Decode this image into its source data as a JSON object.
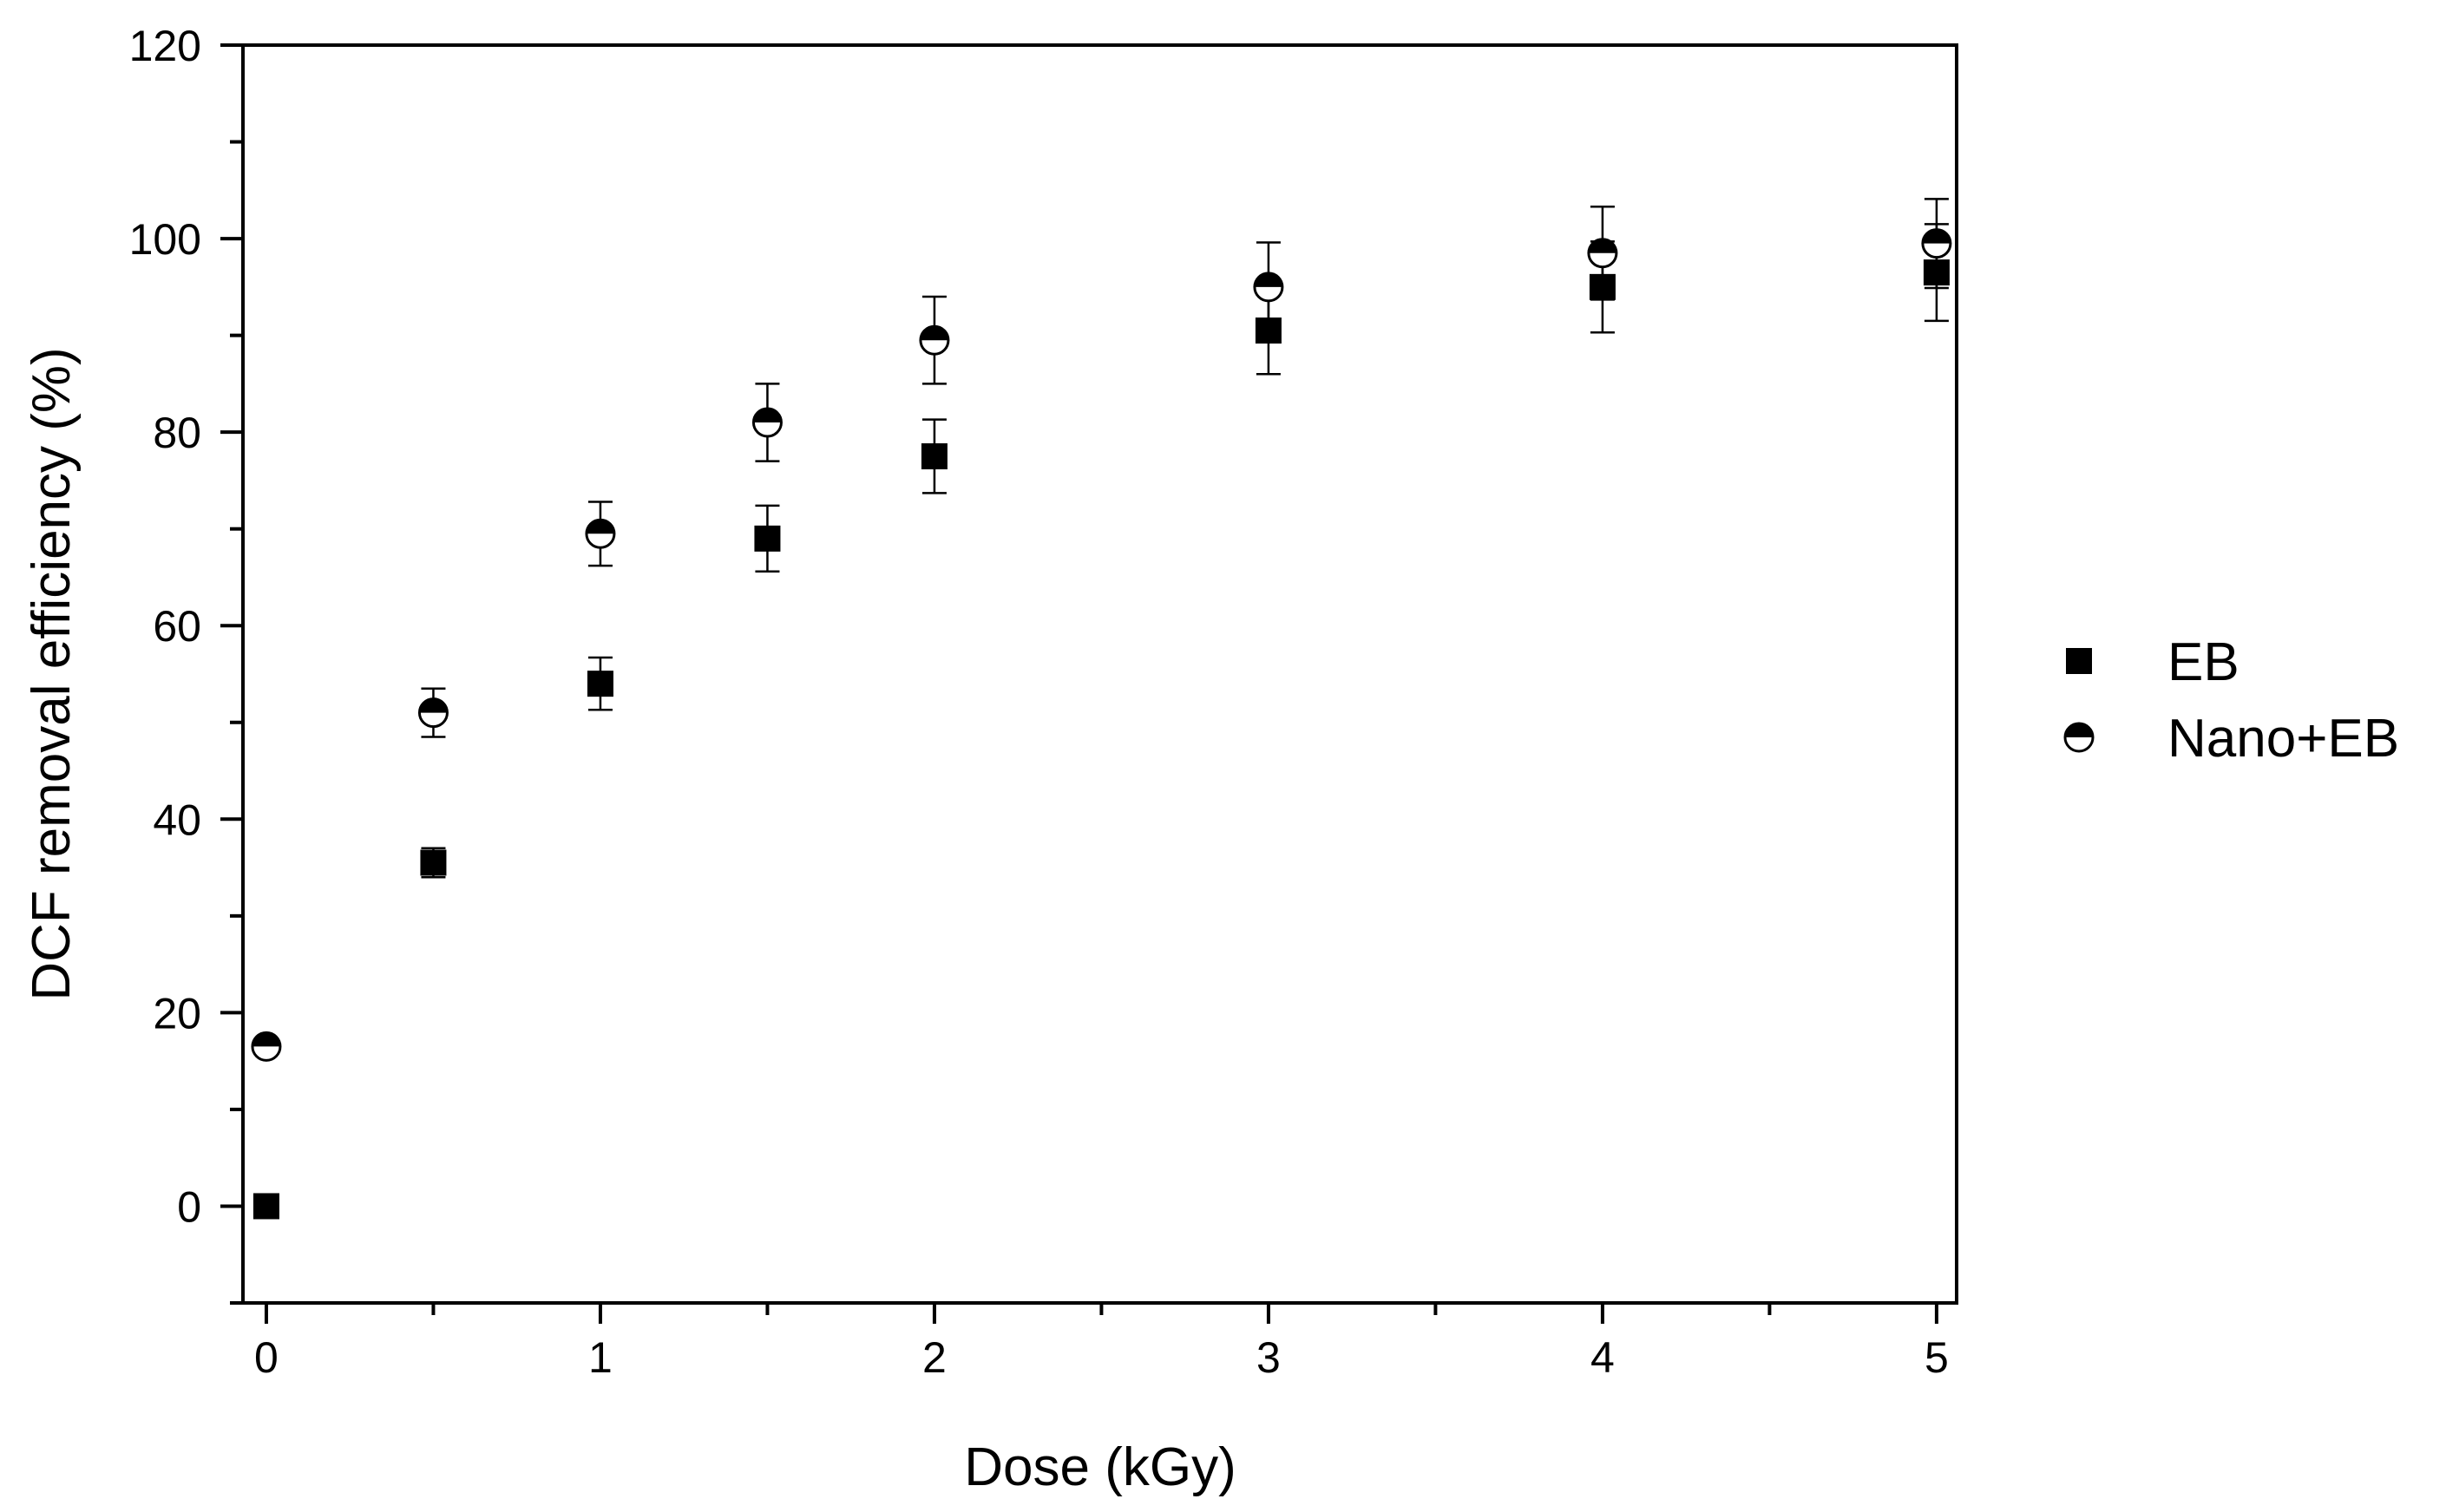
{
  "chart_data": {
    "type": "scatter",
    "xlabel": "Dose (kGy)",
    "ylabel": "DCF removal efficiency (%)",
    "xlim": [
      -0.07,
      5.06
    ],
    "ylim": [
      -10,
      120
    ],
    "xticks": [
      0,
      1,
      2,
      3,
      4,
      5
    ],
    "xtick_labels": [
      "0",
      "1",
      "2",
      "3",
      "4",
      "5"
    ],
    "yticks": [
      0,
      20,
      40,
      60,
      80,
      100,
      120
    ],
    "ytick_labels": [
      "0",
      "20",
      "40",
      "60",
      "80",
      "100",
      "120"
    ],
    "x_minor_ticks": [
      0.5,
      1.5,
      2.5,
      3.5,
      4.5
    ],
    "y_minor_ticks": [
      -10,
      10,
      30,
      50,
      70,
      90,
      110
    ],
    "grid": false,
    "legend_position": "right",
    "series": [
      {
        "name": "EB",
        "marker": "filled-square",
        "color": "#000000",
        "x": [
          0,
          0.5,
          1,
          1.5,
          2,
          3,
          4,
          5
        ],
        "y": [
          0,
          35.5,
          54,
          69,
          77.5,
          90.5,
          95,
          96.5
        ],
        "error": [
          0.5,
          1.5,
          2.7,
          3.4,
          3.8,
          4.5,
          4.7,
          5.0
        ]
      },
      {
        "name": "Nano+EB",
        "marker": "half-filled-circle",
        "color": "#000000",
        "x": [
          0,
          0.5,
          1,
          1.5,
          2,
          3,
          4,
          5
        ],
        "y": [
          16.5,
          51,
          69.5,
          81,
          89.5,
          95,
          98.5,
          99.5
        ],
        "error": [
          0.6,
          2.5,
          3.3,
          4.0,
          4.5,
          4.6,
          4.8,
          4.6
        ]
      }
    ]
  }
}
